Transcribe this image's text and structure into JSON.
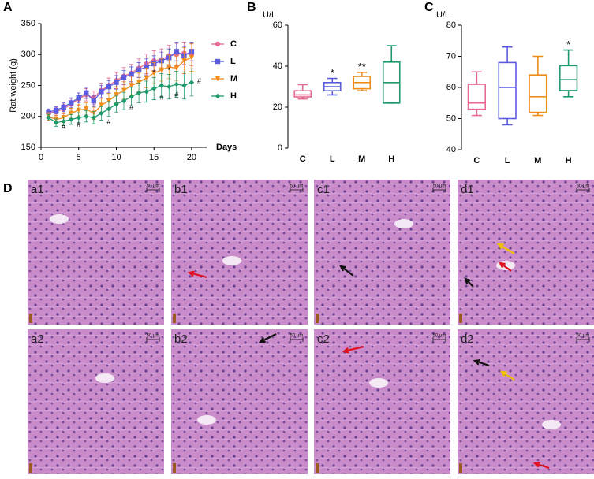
{
  "chart_data": [
    {
      "type": "line",
      "panel": "A",
      "ylabel": "Rat weight (g)",
      "xlabel": "Days",
      "x": [
        1,
        2,
        3,
        4,
        5,
        6,
        7,
        8,
        9,
        10,
        11,
        12,
        13,
        14,
        15,
        16,
        17,
        18,
        19,
        20
      ],
      "xlim": [
        0,
        22
      ],
      "xticks": [
        0,
        5,
        10,
        15,
        20
      ],
      "ylim": [
        150,
        350
      ],
      "yticks": [
        150,
        200,
        250,
        300,
        350
      ],
      "series": [
        {
          "name": "C",
          "color": "#e8698f",
          "marker": "circle",
          "values": [
            205,
            208,
            212,
            220,
            228,
            235,
            230,
            242,
            250,
            258,
            265,
            270,
            278,
            285,
            290,
            292,
            298,
            300,
            302,
            300
          ],
          "errors": [
            6,
            7,
            8,
            9,
            10,
            10,
            11,
            12,
            12,
            13,
            14,
            14,
            15,
            16,
            16,
            17,
            17,
            18,
            18,
            18
          ]
        },
        {
          "name": "L",
          "color": "#5c5ce0",
          "marker": "square",
          "values": [
            207,
            210,
            215,
            222,
            230,
            238,
            225,
            240,
            248,
            255,
            263,
            268,
            275,
            280,
            285,
            290,
            295,
            305,
            298,
            305
          ],
          "errors": [
            5,
            6,
            7,
            8,
            8,
            9,
            9,
            10,
            10,
            11,
            11,
            12,
            12,
            13,
            13,
            14,
            14,
            15,
            15,
            15
          ]
        },
        {
          "name": "M",
          "color": "#f08c1a",
          "marker": "triangle",
          "values": [
            200,
            195,
            198,
            205,
            210,
            212,
            205,
            218,
            225,
            235,
            242,
            250,
            255,
            262,
            270,
            275,
            280,
            278,
            290,
            295
          ],
          "errors": [
            6,
            7,
            8,
            8,
            9,
            10,
            10,
            11,
            12,
            13,
            14,
            15,
            15,
            16,
            17,
            18,
            19,
            20,
            21,
            22
          ]
        },
        {
          "name": "H",
          "color": "#1f9a6a",
          "marker": "diamond",
          "values": [
            198,
            190,
            192,
            195,
            198,
            200,
            198,
            205,
            212,
            220,
            225,
            232,
            238,
            240,
            245,
            250,
            248,
            252,
            250,
            255
          ],
          "errors": [
            5,
            6,
            7,
            8,
            8,
            9,
            10,
            11,
            12,
            13,
            14,
            15,
            16,
            17,
            18,
            19,
            20,
            21,
            22,
            22
          ]
        }
      ],
      "annotations": [
        {
          "text": "#",
          "x": 3,
          "y": 183
        },
        {
          "text": "#",
          "x": 5,
          "y": 186
        },
        {
          "text": "#",
          "x": 9,
          "y": 190
        },
        {
          "text": "#",
          "x": 12,
          "y": 214
        },
        {
          "text": "#",
          "x": 16,
          "y": 230
        },
        {
          "text": "#",
          "x": 18,
          "y": 234
        },
        {
          "text": "#",
          "x": 21,
          "y": 256
        },
        {
          "text": "*",
          "x": 15,
          "y": 270
        },
        {
          "text": "*",
          "x": 17,
          "y": 274
        }
      ]
    },
    {
      "type": "box",
      "panel": "B",
      "ylabel": "U/L",
      "ylim": [
        0,
        60
      ],
      "yticks": [
        0,
        20,
        40,
        60
      ],
      "series": [
        {
          "name": "C",
          "color": "#e8698f",
          "min": 24,
          "q1": 25,
          "median": 26,
          "q3": 28,
          "max": 31
        },
        {
          "name": "L",
          "color": "#5c5ce0",
          "min": 26,
          "q1": 28,
          "median": 30,
          "q3": 32,
          "max": 34,
          "label": "*"
        },
        {
          "name": "M",
          "color": "#f08c1a",
          "min": 28,
          "q1": 29,
          "median": 32,
          "q3": 35,
          "max": 37,
          "label": "**"
        },
        {
          "name": "H",
          "color": "#1f9a6a",
          "min": 22,
          "q1": 22,
          "median": 32,
          "q3": 42,
          "max": 50
        }
      ]
    },
    {
      "type": "box",
      "panel": "C",
      "ylabel": "U/L",
      "ylim": [
        40,
        80
      ],
      "yticks": [
        40,
        50,
        60,
        70,
        80
      ],
      "series": [
        {
          "name": "C",
          "color": "#e8698f",
          "min": 51,
          "q1": 53,
          "median": 55,
          "q3": 61,
          "max": 65
        },
        {
          "name": "L",
          "color": "#5c5ce0",
          "min": 48,
          "q1": 50,
          "median": 60,
          "q3": 68,
          "max": 73
        },
        {
          "name": "M",
          "color": "#f08c1a",
          "min": 51,
          "q1": 52,
          "median": 57,
          "q3": 64,
          "max": 70
        },
        {
          "name": "H",
          "color": "#1f9a6a",
          "min": 57,
          "q1": 59,
          "median": 62.5,
          "q3": 67,
          "max": 72,
          "label": "*"
        }
      ]
    }
  ],
  "histology": {
    "label": "D",
    "panels": [
      {
        "label": "a1",
        "scale": "50 μm"
      },
      {
        "label": "b1",
        "scale": "50 μm"
      },
      {
        "label": "c1",
        "scale": "50 μm"
      },
      {
        "label": "d1",
        "scale": "50 μm"
      },
      {
        "label": "a2",
        "scale": "50 μm"
      },
      {
        "label": "b2",
        "scale": "50 μm"
      },
      {
        "label": "c2",
        "scale": "50 μm"
      },
      {
        "label": "d2",
        "scale": "50 μm"
      }
    ]
  }
}
